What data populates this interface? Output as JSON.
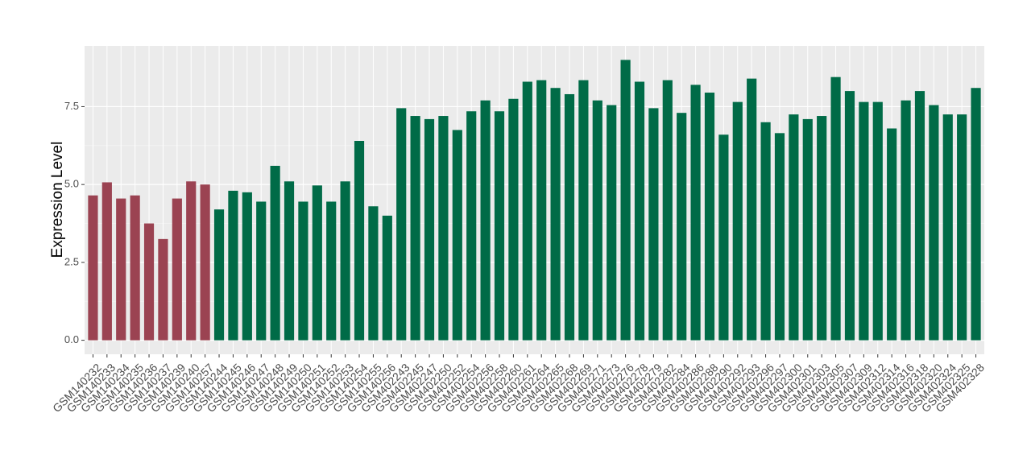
{
  "chart_data": {
    "type": "bar",
    "y_label": "Expression Level",
    "categories": [
      "GSM140232",
      "GSM140233",
      "GSM140234",
      "GSM140235",
      "GSM140236",
      "GSM140237",
      "GSM140239",
      "GSM140240",
      "GSM140257",
      "GSM140244",
      "GSM140245",
      "GSM140246",
      "GSM140247",
      "GSM140248",
      "GSM140249",
      "GSM140250",
      "GSM140251",
      "GSM140252",
      "GSM140253",
      "GSM140254",
      "GSM140255",
      "GSM140256",
      "GSM402243",
      "GSM402245",
      "GSM402247",
      "GSM402250",
      "GSM402252",
      "GSM402254",
      "GSM402256",
      "GSM402258",
      "GSM402260",
      "GSM402261",
      "GSM402264",
      "GSM402265",
      "GSM402268",
      "GSM402269",
      "GSM402271",
      "GSM402273",
      "GSM402276",
      "GSM402278",
      "GSM402279",
      "GSM402282",
      "GSM402284",
      "GSM402286",
      "GSM402288",
      "GSM402290",
      "GSM402292",
      "GSM402293",
      "GSM402296",
      "GSM402297",
      "GSM402300",
      "GSM402301",
      "GSM402303",
      "GSM402305",
      "GSM402307",
      "GSM402309",
      "GSM402312",
      "GSM402314",
      "GSM402316",
      "GSM402318",
      "GSM402320",
      "GSM402324",
      "GSM402325",
      "GSM402328"
    ],
    "values": [
      4.65,
      5.07,
      4.55,
      4.65,
      3.75,
      3.25,
      4.55,
      5.1,
      5.0,
      4.2,
      4.8,
      4.75,
      4.45,
      5.6,
      5.1,
      4.45,
      4.97,
      4.45,
      5.1,
      6.4,
      4.3,
      4.0,
      7.45,
      7.2,
      7.1,
      7.2,
      6.75,
      7.35,
      7.7,
      7.35,
      7.75,
      8.3,
      8.35,
      8.1,
      7.9,
      8.35,
      7.7,
      7.55,
      9.0,
      8.3,
      7.45,
      8.35,
      7.3,
      8.2,
      7.95,
      6.6,
      7.65,
      8.4,
      7.0,
      6.65,
      7.25,
      7.1,
      7.2,
      8.45,
      8.0,
      7.65,
      7.65,
      6.8,
      7.7,
      8.0,
      7.55,
      7.25,
      7.25,
      8.1
    ],
    "colors": [
      "#9b4352",
      "#9b4352",
      "#9b4352",
      "#9b4352",
      "#9b4352",
      "#9b4352",
      "#9b4352",
      "#9b4352",
      "#9b4352",
      "#006b47",
      "#006b47",
      "#006b47",
      "#006b47",
      "#006b47",
      "#006b47",
      "#006b47",
      "#006b47",
      "#006b47",
      "#006b47",
      "#006b47",
      "#006b47",
      "#006b47",
      "#006b47",
      "#006b47",
      "#006b47",
      "#006b47",
      "#006b47",
      "#006b47",
      "#006b47",
      "#006b47",
      "#006b47",
      "#006b47",
      "#006b47",
      "#006b47",
      "#006b47",
      "#006b47",
      "#006b47",
      "#006b47",
      "#006b47",
      "#006b47",
      "#006b47",
      "#006b47",
      "#006b47",
      "#006b47",
      "#006b47",
      "#006b47",
      "#006b47",
      "#006b47",
      "#006b47",
      "#006b47",
      "#006b47",
      "#006b47",
      "#006b47",
      "#006b47",
      "#006b47",
      "#006b47",
      "#006b47",
      "#006b47",
      "#006b47",
      "#006b47",
      "#006b47",
      "#006b47",
      "#006b47",
      "#006b47"
    ],
    "ylim": [
      -0.45,
      9.45
    ],
    "yticks": [
      {
        "value": 0,
        "label": "0.0"
      },
      2.5,
      {
        "value": 5,
        "label": "5.0"
      },
      7.5
    ],
    "grid": true
  }
}
